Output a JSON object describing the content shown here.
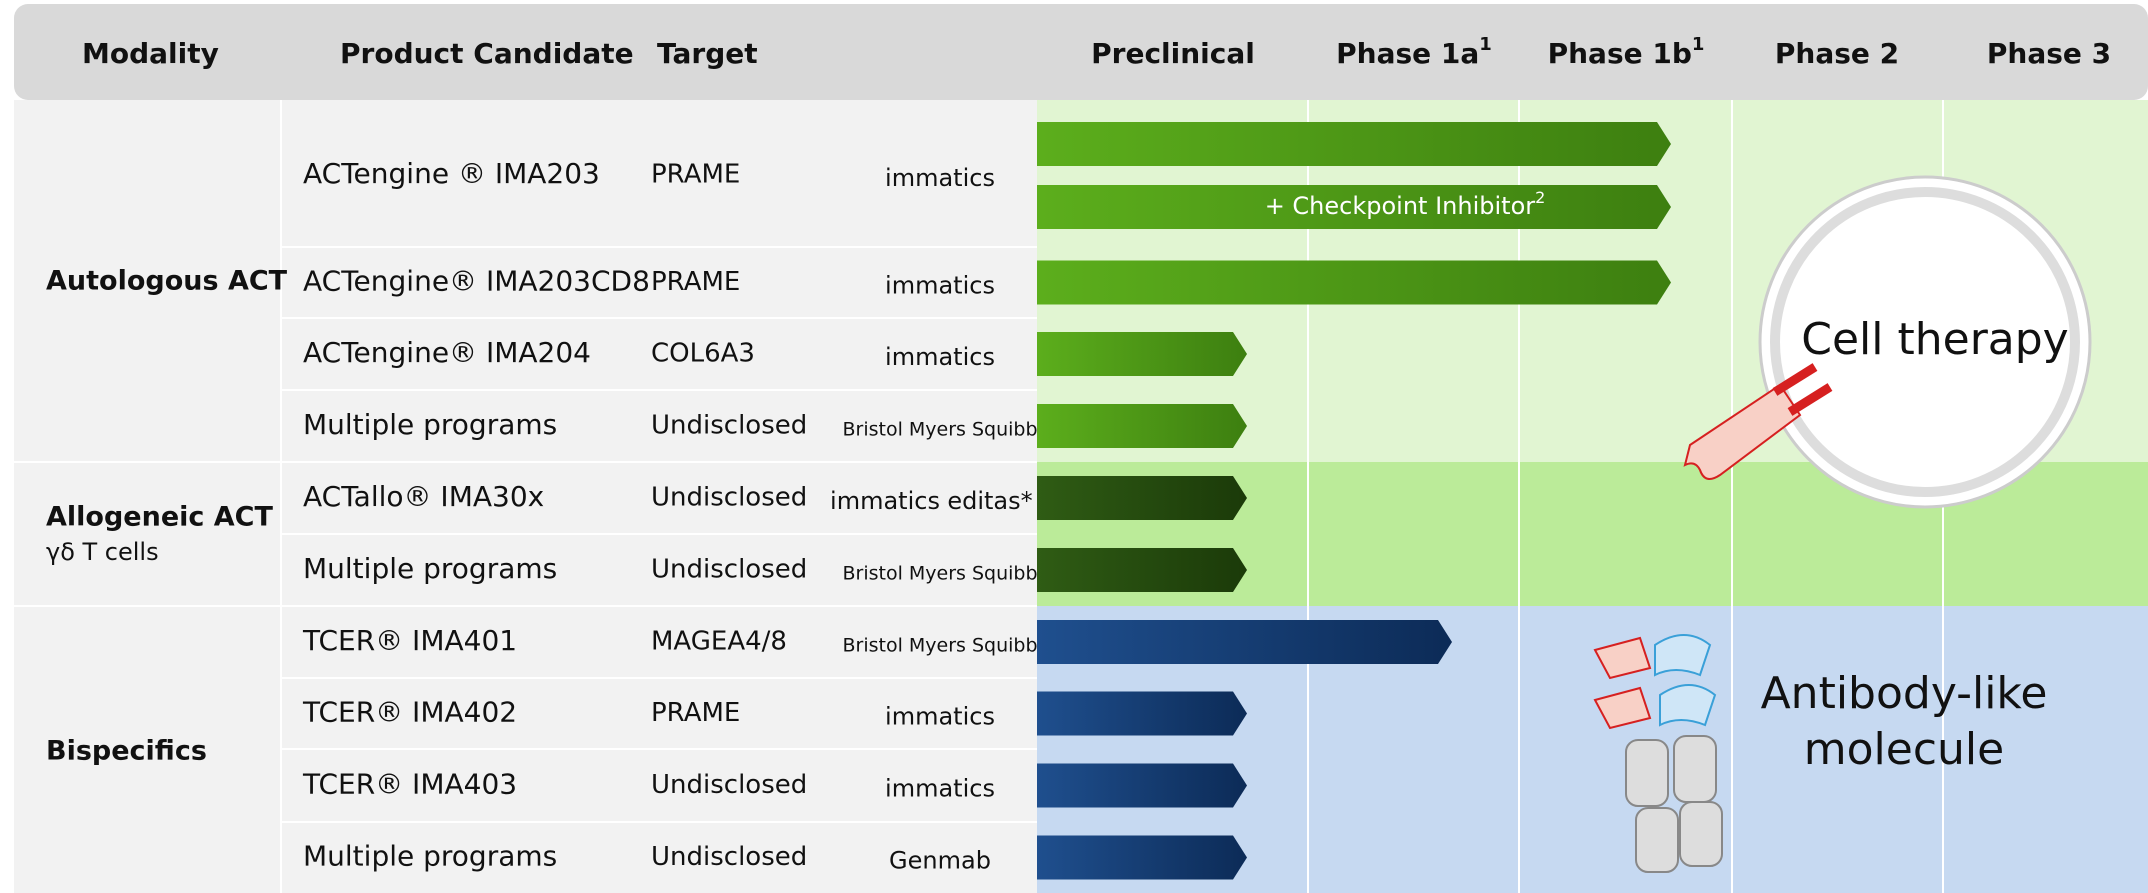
{
  "header": {
    "columns": [
      "Modality",
      "Product Candidate",
      "Target"
    ],
    "phases": [
      {
        "label": "Preclinical"
      },
      {
        "label": "Phase 1a",
        "note": "1"
      },
      {
        "label": "Phase 1b",
        "note": "1"
      },
      {
        "label": "Phase 2"
      },
      {
        "label": "Phase 3"
      }
    ]
  },
  "groups": [
    {
      "name": "Autologous ACT"
    },
    {
      "name": "Allogeneic ACT",
      "subtitle": "γδ T cells"
    },
    {
      "name": "Bispecifics"
    }
  ],
  "rows": [
    {
      "product": "ACTengine ® IMA203",
      "target": "PRAME",
      "partners": [
        "immatics"
      ],
      "bar_note": "+ Checkpoint Inhibitor",
      "bar_note_mark": "2"
    },
    {
      "product": "ACTengine® IMA203CD8",
      "target": "PRAME",
      "partners": [
        "immatics"
      ]
    },
    {
      "product": "ACTengine® IMA204",
      "target": "COL6A3",
      "partners": [
        "immatics"
      ]
    },
    {
      "product": "Multiple programs",
      "target": "Undisclosed",
      "partners": [
        "Bristol Myers Squibb"
      ]
    },
    {
      "product": "ACTallo® IMA30x",
      "target": "Undisclosed",
      "partners": [
        "immatics",
        "editas*"
      ]
    },
    {
      "product": "Multiple programs",
      "target": "Undisclosed",
      "partners": [
        "Bristol Myers Squibb"
      ]
    },
    {
      "product": "TCER® IMA401",
      "target": "MAGEA4/8",
      "partners": [
        "Bristol Myers Squibb"
      ]
    },
    {
      "product": "TCER® IMA402",
      "target": "PRAME",
      "partners": [
        "immatics"
      ]
    },
    {
      "product": "TCER® IMA403",
      "target": "Undisclosed",
      "partners": [
        "immatics"
      ]
    },
    {
      "product": "Multiple programs",
      "target": "Undisclosed",
      "partners": [
        "Genmab"
      ]
    }
  ],
  "illustrations": {
    "cell": "Cell therapy",
    "antibody": [
      "Antibody-like",
      "molecule"
    ]
  }
}
